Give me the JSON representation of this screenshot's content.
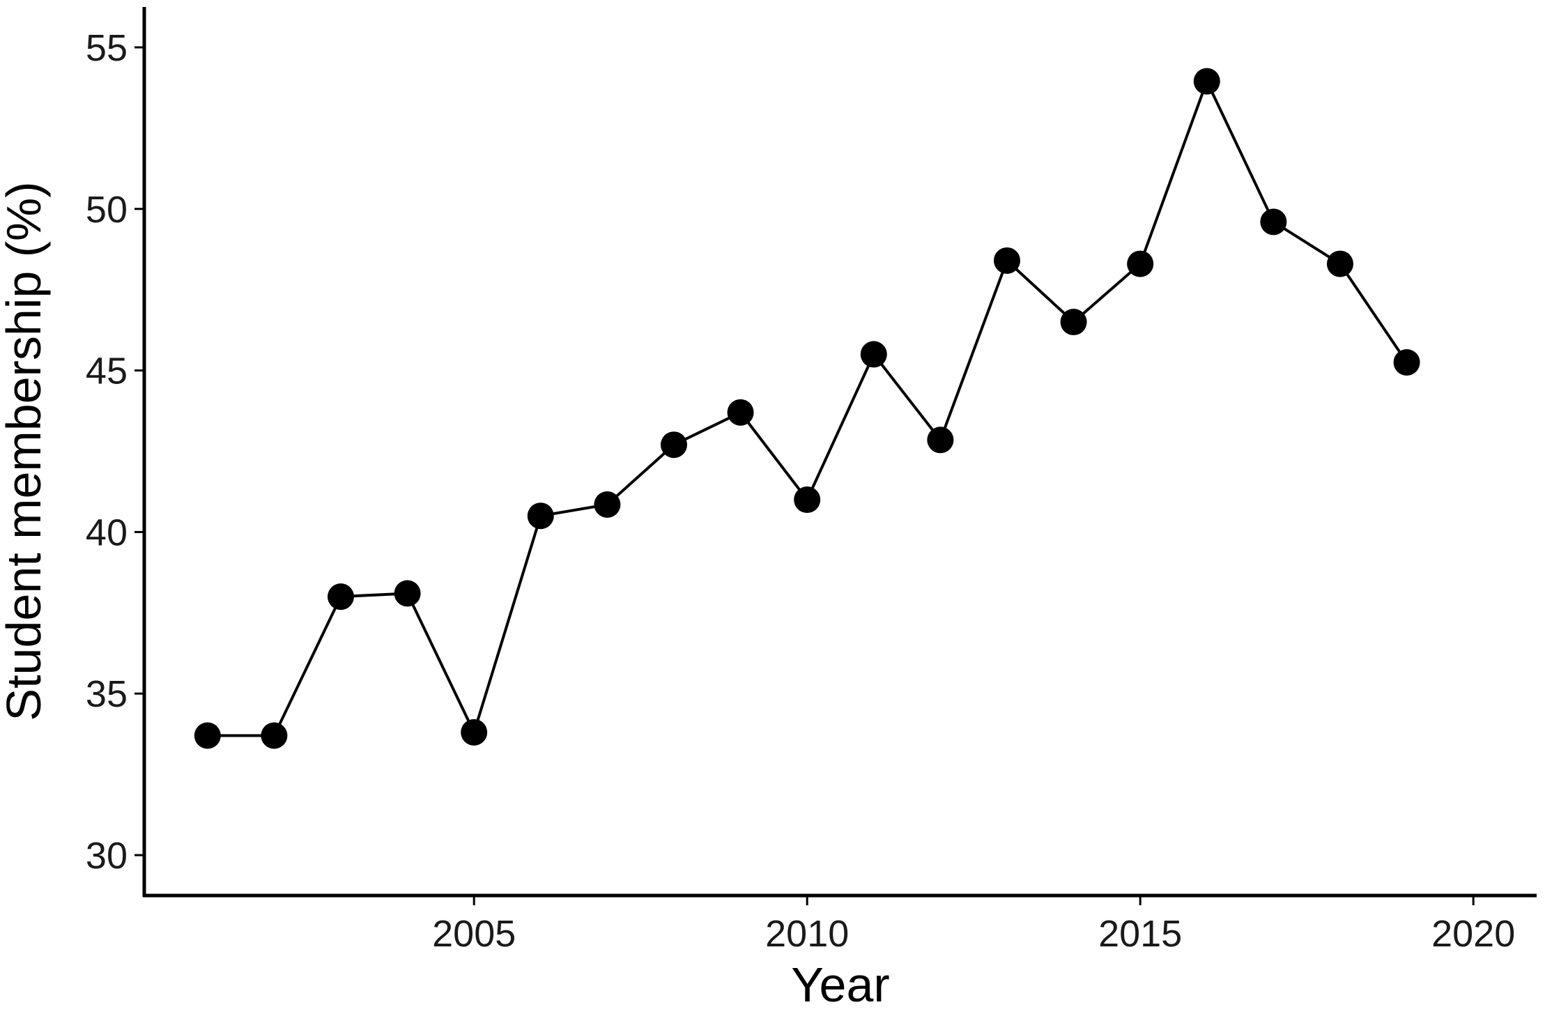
{
  "chart_data": {
    "type": "line",
    "title": "",
    "xlabel": "Year",
    "ylabel": "Student membership (%)",
    "xlim": [
      2000.05,
      2020.95
    ],
    "ylim": [
      28.75,
      56.25
    ],
    "x_ticks": [
      2005,
      2010,
      2015,
      2020
    ],
    "y_ticks": [
      30,
      35,
      40,
      45,
      50,
      55
    ],
    "grid": false,
    "legend": "none",
    "series": [
      {
        "x": [
          2001,
          2002,
          2003,
          2004,
          2005,
          2006,
          2007,
          2008,
          2009,
          2010,
          2011,
          2012,
          2013,
          2014,
          2015,
          2016,
          2017,
          2018,
          2019
        ],
        "values": [
          33.7,
          33.7,
          38.0,
          38.1,
          33.8,
          40.5,
          40.85,
          42.7,
          43.7,
          41.0,
          45.5,
          42.85,
          48.4,
          46.5,
          48.3,
          53.95,
          49.6,
          48.3,
          45.25
        ]
      }
    ],
    "colors": {
      "line": "#000000",
      "marker": "#000000",
      "axis": "#000000",
      "text": "#1a1a1a"
    }
  }
}
